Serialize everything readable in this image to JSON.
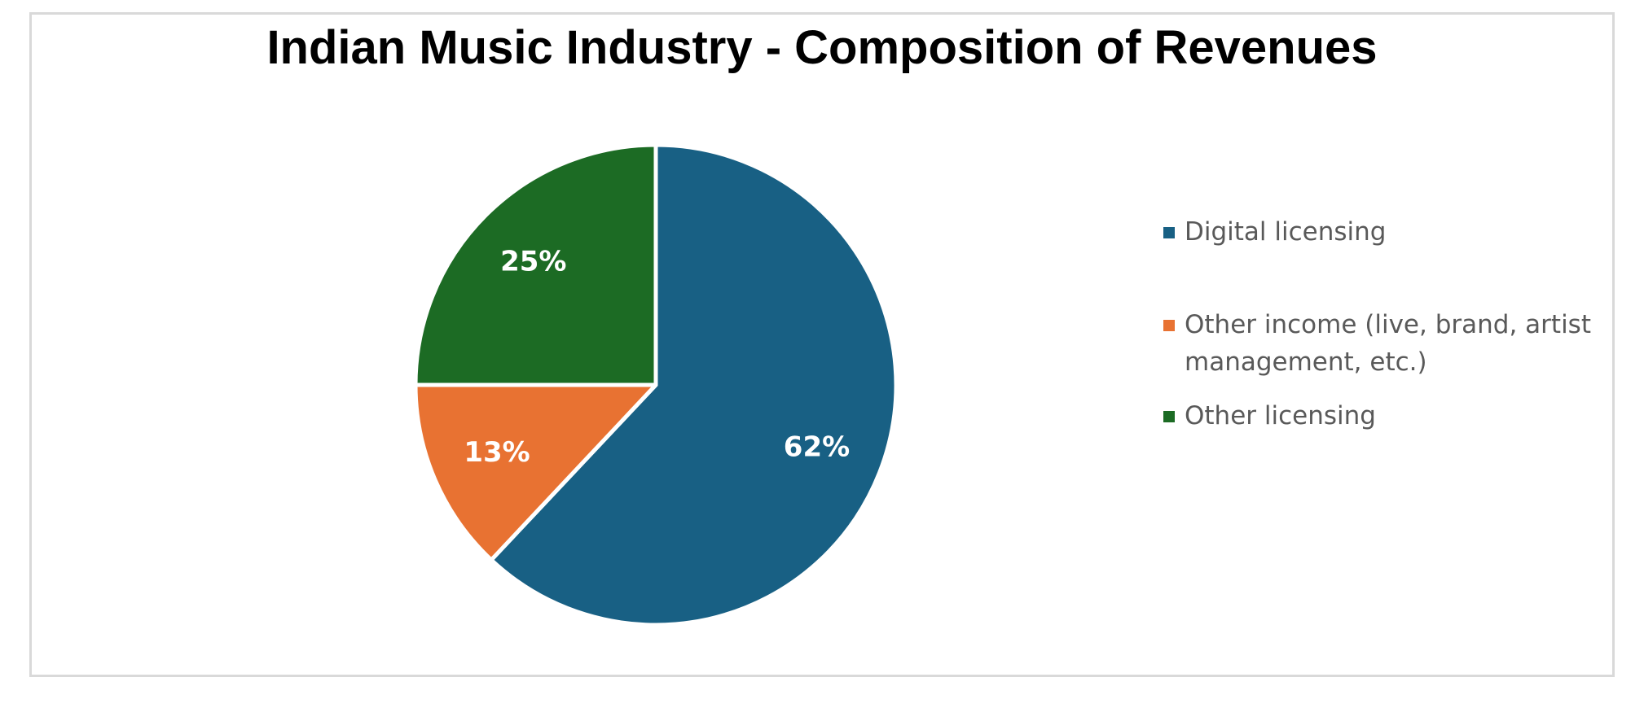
{
  "chart_data": {
    "type": "pie",
    "title": "Indian Music Industry - Composition of Revenues",
    "categories": [
      "Digital licensing",
      "Other income (live, brand, artist management, etc.)",
      "Other licensing"
    ],
    "values": [
      62,
      13,
      25
    ],
    "data_labels": [
      "62%",
      "13%",
      "25%"
    ],
    "colors": [
      "#186084",
      "#E87232",
      "#1C6B24"
    ],
    "legend_position": "right",
    "start_angle_deg": 0,
    "direction": "clockwise"
  }
}
